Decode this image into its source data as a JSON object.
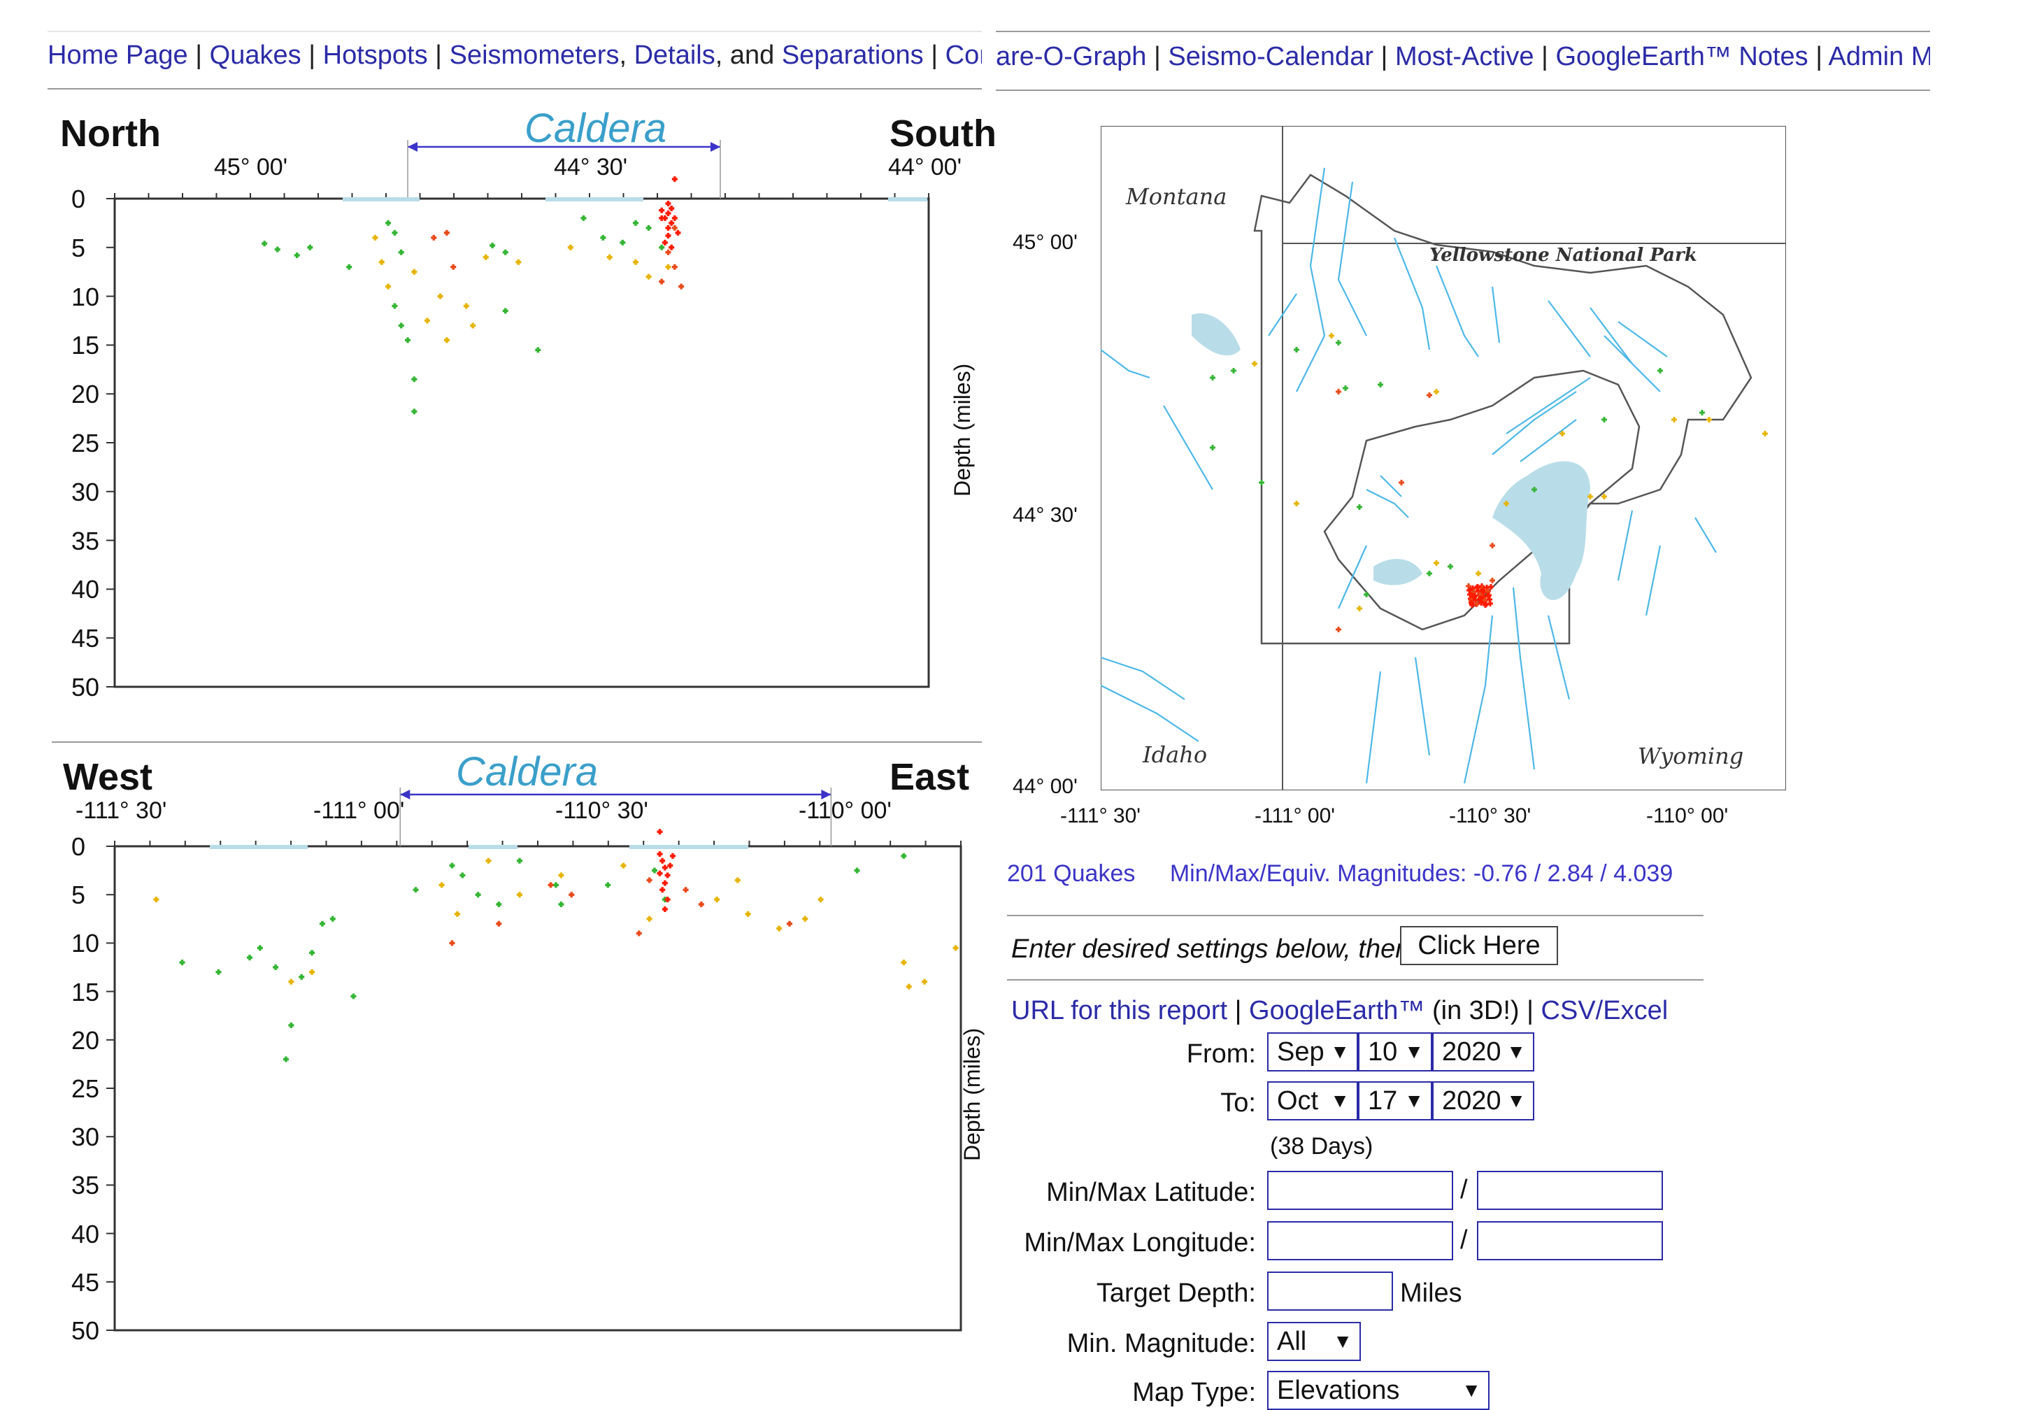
{
  "nav": {
    "items": [
      "Home Page",
      "Quakes",
      "Hotspots",
      "Seismometers",
      "Details",
      "Separations",
      "Compare-O-Graph",
      "Seismo-Calendar",
      "Most-Active",
      "GoogleEarth™ Notes",
      "Admin Menu"
    ],
    "and_text": ", and",
    "left_visible": [
      "Home Page",
      "Quakes",
      "Hotspots",
      "Seismometers",
      "Details",
      "Separations",
      "Comp"
    ],
    "right_visible": [
      "are-O-Graph",
      "Seismo-Calendar",
      "Most-Active",
      "GoogleEarth™ Notes",
      "Admin Menu"
    ]
  },
  "ns_chart": {
    "dir_left": "North",
    "dir_right": "South",
    "caldera": "Caldera",
    "x_ticks": [
      "45° 00'",
      "44° 30'",
      "44° 00'"
    ],
    "y_ticks": [
      "0",
      "5",
      "10",
      "15",
      "20",
      "25",
      "30",
      "35",
      "40",
      "45",
      "50"
    ],
    "ylabel": "Depth (miles)"
  },
  "we_chart": {
    "dir_left": "West",
    "dir_right": "East",
    "caldera": "Caldera",
    "x_ticks": [
      "-111° 30'",
      "-111° 00'",
      "-110° 30'",
      "-110° 00'"
    ],
    "y_ticks": [
      "0",
      "5",
      "10",
      "15",
      "20",
      "25",
      "30",
      "35",
      "40",
      "45",
      "50"
    ],
    "ylabel": "Depth (miles)"
  },
  "map": {
    "labels": [
      "Montana",
      "Yellowstone National Park",
      "Idaho",
      "Wyoming"
    ],
    "lat_ticks": [
      "45° 00'",
      "44° 30'",
      "44° 00'"
    ],
    "lon_ticks": [
      "-111° 30'",
      "-111° 00'",
      "-110° 30'",
      "-110° 00'"
    ]
  },
  "stats": {
    "quakes": "201 Quakes",
    "magnitudes": "Min/Max/Equiv. Magnitudes: -0.76 / 2.84 / 4.039"
  },
  "form": {
    "instruction": "Enter desired settings below, then",
    "button": "Click Here",
    "links": [
      "URL for this report",
      "GoogleEarth™",
      "(in 3D!)",
      "CSV/Excel"
    ],
    "from_label": "From:",
    "from": {
      "month": "Sep",
      "day": "10",
      "year": "2020"
    },
    "to_label": "To:",
    "to": {
      "month": "Oct",
      "day": "17",
      "year": "2020"
    },
    "days": "(38 Days)",
    "lat_label": "Min/Max Latitude:",
    "lon_label": "Min/Max Longitude:",
    "depth_label": "Target Depth:",
    "depth_unit": "Miles",
    "mag_label": "Min. Magnitude:",
    "mag_value": "All",
    "maptype_label": "Map Type:",
    "maptype_value": "Elevations",
    "slash": "/"
  },
  "chart_data": [
    {
      "type": "scatter",
      "title": "",
      "xlabel": "",
      "ylabel": "Depth (miles)",
      "x_axis": "latitude (north to south)",
      "x_ticks": [
        "45° 00'",
        "44° 30'",
        "44° 00'"
      ],
      "xlim": [
        45.2,
        43.95
      ],
      "ylim": [
        0,
        50
      ],
      "caldera_span": [
        44.75,
        44.27
      ],
      "series": [
        {
          "color": "#33b533",
          "points": [
            [
              44.97,
              4.6
            ],
            [
              44.95,
              5.2
            ],
            [
              44.92,
              5.8
            ],
            [
              44.9,
              5.0
            ],
            [
              44.84,
              7.0
            ],
            [
              44.78,
              2.5
            ],
            [
              44.77,
              3.5
            ],
            [
              44.76,
              5.5
            ],
            [
              44.77,
              11.0
            ],
            [
              44.76,
              13.0
            ],
            [
              44.75,
              14.5
            ],
            [
              44.74,
              18.5
            ],
            [
              44.74,
              21.8
            ],
            [
              44.62,
              4.8
            ],
            [
              44.6,
              5.5
            ],
            [
              44.6,
              11.5
            ],
            [
              44.55,
              15.5
            ],
            [
              44.48,
              2.0
            ],
            [
              44.45,
              4.0
            ],
            [
              44.42,
              4.5
            ],
            [
              44.4,
              2.5
            ],
            [
              44.38,
              3.0
            ],
            [
              44.36,
              5.0
            ]
          ]
        },
        {
          "color": "#e6b400",
          "points": [
            [
              44.8,
              4.0
            ],
            [
              44.79,
              6.5
            ],
            [
              44.78,
              9.0
            ],
            [
              44.74,
              7.5
            ],
            [
              44.72,
              12.5
            ],
            [
              44.7,
              10.0
            ],
            [
              44.69,
              14.5
            ],
            [
              44.66,
              11.0
            ],
            [
              44.65,
              13.0
            ],
            [
              44.63,
              6.0
            ],
            [
              44.58,
              6.5
            ],
            [
              44.5,
              5.0
            ],
            [
              44.44,
              6.0
            ],
            [
              44.4,
              6.5
            ],
            [
              44.38,
              8.0
            ],
            [
              44.35,
              7.0
            ]
          ]
        },
        {
          "color": "#e84a1a",
          "points": [
            [
              44.71,
              4.0
            ],
            [
              44.69,
              3.5
            ],
            [
              44.68,
              7.0
            ],
            [
              44.36,
              8.5
            ],
            [
              44.35,
              5.5
            ],
            [
              44.34,
              7.0
            ],
            [
              44.33,
              9.0
            ],
            [
              44.34,
              3.0
            ]
          ]
        },
        {
          "color": "#ff1a00",
          "points": [
            [
              44.345,
              1.0
            ],
            [
              44.35,
              1.5
            ],
            [
              44.355,
              2.0
            ],
            [
              44.345,
              2.5
            ],
            [
              44.35,
              3.0
            ],
            [
              44.36,
              2.0
            ],
            [
              44.34,
              2.0
            ],
            [
              44.35,
              3.8
            ],
            [
              44.355,
              4.5
            ],
            [
              44.345,
              5.0
            ],
            [
              44.35,
              0.5
            ],
            [
              44.36,
              1.2
            ],
            [
              44.335,
              3.5
            ],
            [
              44.34,
              -2.0
            ]
          ]
        }
      ]
    },
    {
      "type": "scatter",
      "title": "",
      "xlabel": "",
      "ylabel": "Depth (miles)",
      "x_axis": "longitude (west to east)",
      "x_ticks": [
        "-111° 30'",
        "-111° 00'",
        "-110° 30'",
        "-110° 00'"
      ],
      "xlim": [
        -111.58,
        -109.95
      ],
      "ylim": [
        0,
        50
      ],
      "caldera_span": [
        -111.03,
        -110.2
      ],
      "series": [
        {
          "color": "#33b533",
          "points": [
            [
              -111.45,
              12.0
            ],
            [
              -111.38,
              13.0
            ],
            [
              -111.32,
              11.5
            ],
            [
              -111.3,
              10.5
            ],
            [
              -111.27,
              12.5
            ],
            [
              -111.25,
              22.0
            ],
            [
              -111.24,
              18.5
            ],
            [
              -111.22,
              13.5
            ],
            [
              -111.2,
              11.0
            ],
            [
              -111.18,
              8.0
            ],
            [
              -111.16,
              7.5
            ],
            [
              -111.12,
              15.5
            ],
            [
              -111.0,
              4.5
            ],
            [
              -110.93,
              2.0
            ],
            [
              -110.91,
              3.0
            ],
            [
              -110.88,
              5.0
            ],
            [
              -110.84,
              6.0
            ],
            [
              -110.8,
              1.5
            ],
            [
              -110.73,
              4.0
            ],
            [
              -110.72,
              6.0
            ],
            [
              -110.63,
              4.0
            ],
            [
              -110.54,
              2.5
            ],
            [
              -110.52,
              5.5
            ],
            [
              -110.15,
              2.5
            ],
            [
              -110.06,
              1.0
            ]
          ]
        },
        {
          "color": "#e6b400",
          "points": [
            [
              -111.5,
              5.5
            ],
            [
              -111.24,
              14.0
            ],
            [
              -111.2,
              13.0
            ],
            [
              -110.95,
              4.0
            ],
            [
              -110.92,
              7.0
            ],
            [
              -110.86,
              1.5
            ],
            [
              -110.8,
              5.0
            ],
            [
              -110.72,
              3.0
            ],
            [
              -110.6,
              2.0
            ],
            [
              -110.55,
              7.5
            ],
            [
              -110.42,
              5.5
            ],
            [
              -110.38,
              3.5
            ],
            [
              -110.36,
              7.0
            ],
            [
              -110.3,
              8.5
            ],
            [
              -110.25,
              7.5
            ],
            [
              -110.22,
              5.5
            ],
            [
              -110.06,
              12.0
            ],
            [
              -110.05,
              14.5
            ],
            [
              -110.02,
              14.0
            ],
            [
              -109.96,
              10.5
            ]
          ]
        },
        {
          "color": "#e84a1a",
          "points": [
            [
              -110.93,
              10.0
            ],
            [
              -110.84,
              8.0
            ],
            [
              -110.74,
              4.0
            ],
            [
              -110.7,
              5.0
            ],
            [
              -110.57,
              9.0
            ],
            [
              -110.55,
              3.5
            ],
            [
              -110.48,
              4.5
            ],
            [
              -110.45,
              6.0
            ],
            [
              -110.28,
              8.0
            ]
          ]
        },
        {
          "color": "#ff1a00",
          "points": [
            [
              -110.53,
              0.8
            ],
            [
              -110.525,
              1.5
            ],
            [
              -110.52,
              2.2
            ],
            [
              -110.515,
              3.0
            ],
            [
              -110.52,
              3.8
            ],
            [
              -110.525,
              4.5
            ],
            [
              -110.51,
              2.0
            ],
            [
              -110.53,
              2.8
            ],
            [
              -110.515,
              5.5
            ],
            [
              -110.52,
              6.5
            ],
            [
              -110.505,
              1.0
            ],
            [
              -110.53,
              -1.5
            ]
          ]
        }
      ]
    }
  ]
}
